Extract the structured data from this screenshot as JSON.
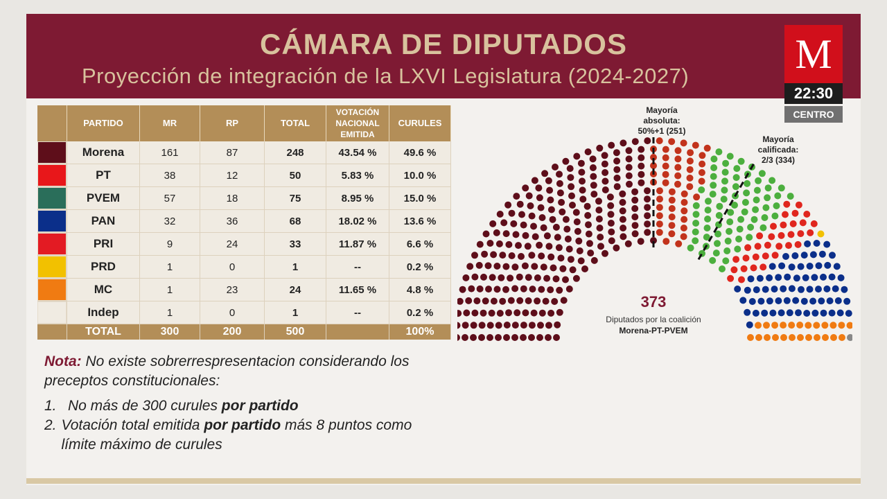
{
  "header": {
    "title": "CÁMARA DE DIPUTADOS",
    "subtitle": "Proyección de integración de la LXVI Legislatura (2024-2027)"
  },
  "broadcast": {
    "logo": "M",
    "time": "22:30",
    "zone": "CENTRO"
  },
  "table": {
    "headers": [
      "PARTIDO",
      "MR",
      "RP",
      "TOTAL",
      "VOTACIÓN NACIONAL EMITIDA",
      "CURULES"
    ],
    "rows": [
      {
        "party": "Morena",
        "color": "#5e0e1a",
        "mr": "161",
        "rp": "87",
        "total": "248",
        "vote": "43.54 %",
        "seats": "49.6 %"
      },
      {
        "party": "PT",
        "color": "#e8171a",
        "mr": "38",
        "rp": "12",
        "total": "50",
        "vote": "5.83 %",
        "seats": "10.0 %"
      },
      {
        "party": "PVEM",
        "color": "#2a6e5a",
        "mr": "57",
        "rp": "18",
        "total": "75",
        "vote": "8.95 %",
        "seats": "15.0 %"
      },
      {
        "party": "PAN",
        "color": "#0b2f8a",
        "mr": "32",
        "rp": "36",
        "total": "68",
        "vote": "18.02 %",
        "seats": "13.6 %"
      },
      {
        "party": "PRI",
        "color": "#e31b23",
        "mr": "9",
        "rp": "24",
        "total": "33",
        "vote": "11.87 %",
        "seats": "6.6 %"
      },
      {
        "party": "PRD",
        "color": "#f2c100",
        "mr": "1",
        "rp": "0",
        "total": "1",
        "vote": "--",
        "seats": "0.2 %"
      },
      {
        "party": "MC",
        "color": "#f07b12",
        "mr": "1",
        "rp": "23",
        "total": "24",
        "vote": "11.65 %",
        "seats": "4.8 %"
      },
      {
        "party": "Indep",
        "color": "#f0ebe2",
        "mr": "1",
        "rp": "0",
        "total": "1",
        "vote": "--",
        "seats": "0.2 %"
      }
    ],
    "total_row": {
      "label": "TOTAL",
      "mr": "300",
      "rp": "200",
      "total": "500",
      "vote": "",
      "seats": "100%"
    }
  },
  "note": {
    "label": "Nota:",
    "text": "No existe sobrerrespresentacion considerando los preceptos constitucionales:",
    "items": [
      {
        "num": "1.",
        "pre": "No más de 300 curules ",
        "bold": "por partido",
        "post": ""
      },
      {
        "num": "2.",
        "pre": "Votación total emitida ",
        "bold": "por partido",
        "post": " más 8 puntos como límite máximo de curules"
      }
    ]
  },
  "chart_data": {
    "type": "hemicycle",
    "title": "Proyección de integración de la LXVI Legislatura (2024-2027)",
    "total_seats": 500,
    "series": [
      {
        "name": "Morena",
        "seats": 248,
        "color": "#5e0e1a"
      },
      {
        "name": "PT",
        "seats": 50,
        "color": "#c2331c"
      },
      {
        "name": "PVEM",
        "seats": 75,
        "color": "#4caf3e"
      },
      {
        "name": "PRI",
        "seats": 33,
        "color": "#e0261e"
      },
      {
        "name": "PRD",
        "seats": 1,
        "color": "#f2c100"
      },
      {
        "name": "PAN",
        "seats": 68,
        "color": "#0b2f8a"
      },
      {
        "name": "MC",
        "seats": 24,
        "color": "#f07b12"
      },
      {
        "name": "Indep",
        "seats": 1,
        "color": "#888888"
      }
    ],
    "thresholds": [
      {
        "label_lines": [
          "Mayoría",
          "absoluta:",
          "50%+1 (251)"
        ],
        "seats": 251
      },
      {
        "label_lines": [
          "Mayoría",
          "calificada:",
          "2/3 (334)"
        ],
        "seats": 334
      }
    ],
    "center_value": "373",
    "center_caption": "Diputados por la coalición",
    "center_caption_bold": "Morena-PT-PVEM"
  }
}
